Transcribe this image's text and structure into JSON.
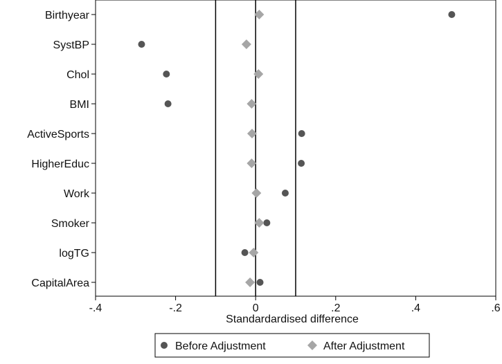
{
  "chart_data": {
    "type": "scatter",
    "title": "",
    "xlabel": "Standardardised difference",
    "ylabel": "",
    "xlim": [
      -0.4,
      0.6
    ],
    "x_ticks": [
      -0.4,
      -0.2,
      0,
      0.2,
      0.4,
      0.6
    ],
    "x_tick_labels": [
      "-.4",
      "-.2",
      "0",
      ".2",
      ".4",
      ".6"
    ],
    "categories": [
      "Birthyear",
      "SystBP",
      "Chol",
      "BMI",
      "ActiveSports",
      "HigherEduc",
      "Work",
      "Smoker",
      "logTG",
      "CapitalArea"
    ],
    "reference_lines": [
      -0.1,
      0,
      0.1
    ],
    "grid": false,
    "legend_position": "bottom",
    "series": [
      {
        "name": "Before Adjustment",
        "marker": "circle",
        "color": "#555555",
        "values": [
          0.49,
          -0.285,
          -0.223,
          -0.219,
          0.115,
          0.114,
          0.074,
          0.028,
          -0.027,
          0.011
        ]
      },
      {
        "name": "After Adjustment",
        "marker": "diamond",
        "color": "#a6a6a6",
        "values": [
          0.009,
          -0.023,
          0.007,
          -0.01,
          -0.009,
          -0.01,
          0.002,
          0.009,
          -0.005,
          -0.014
        ]
      }
    ]
  }
}
